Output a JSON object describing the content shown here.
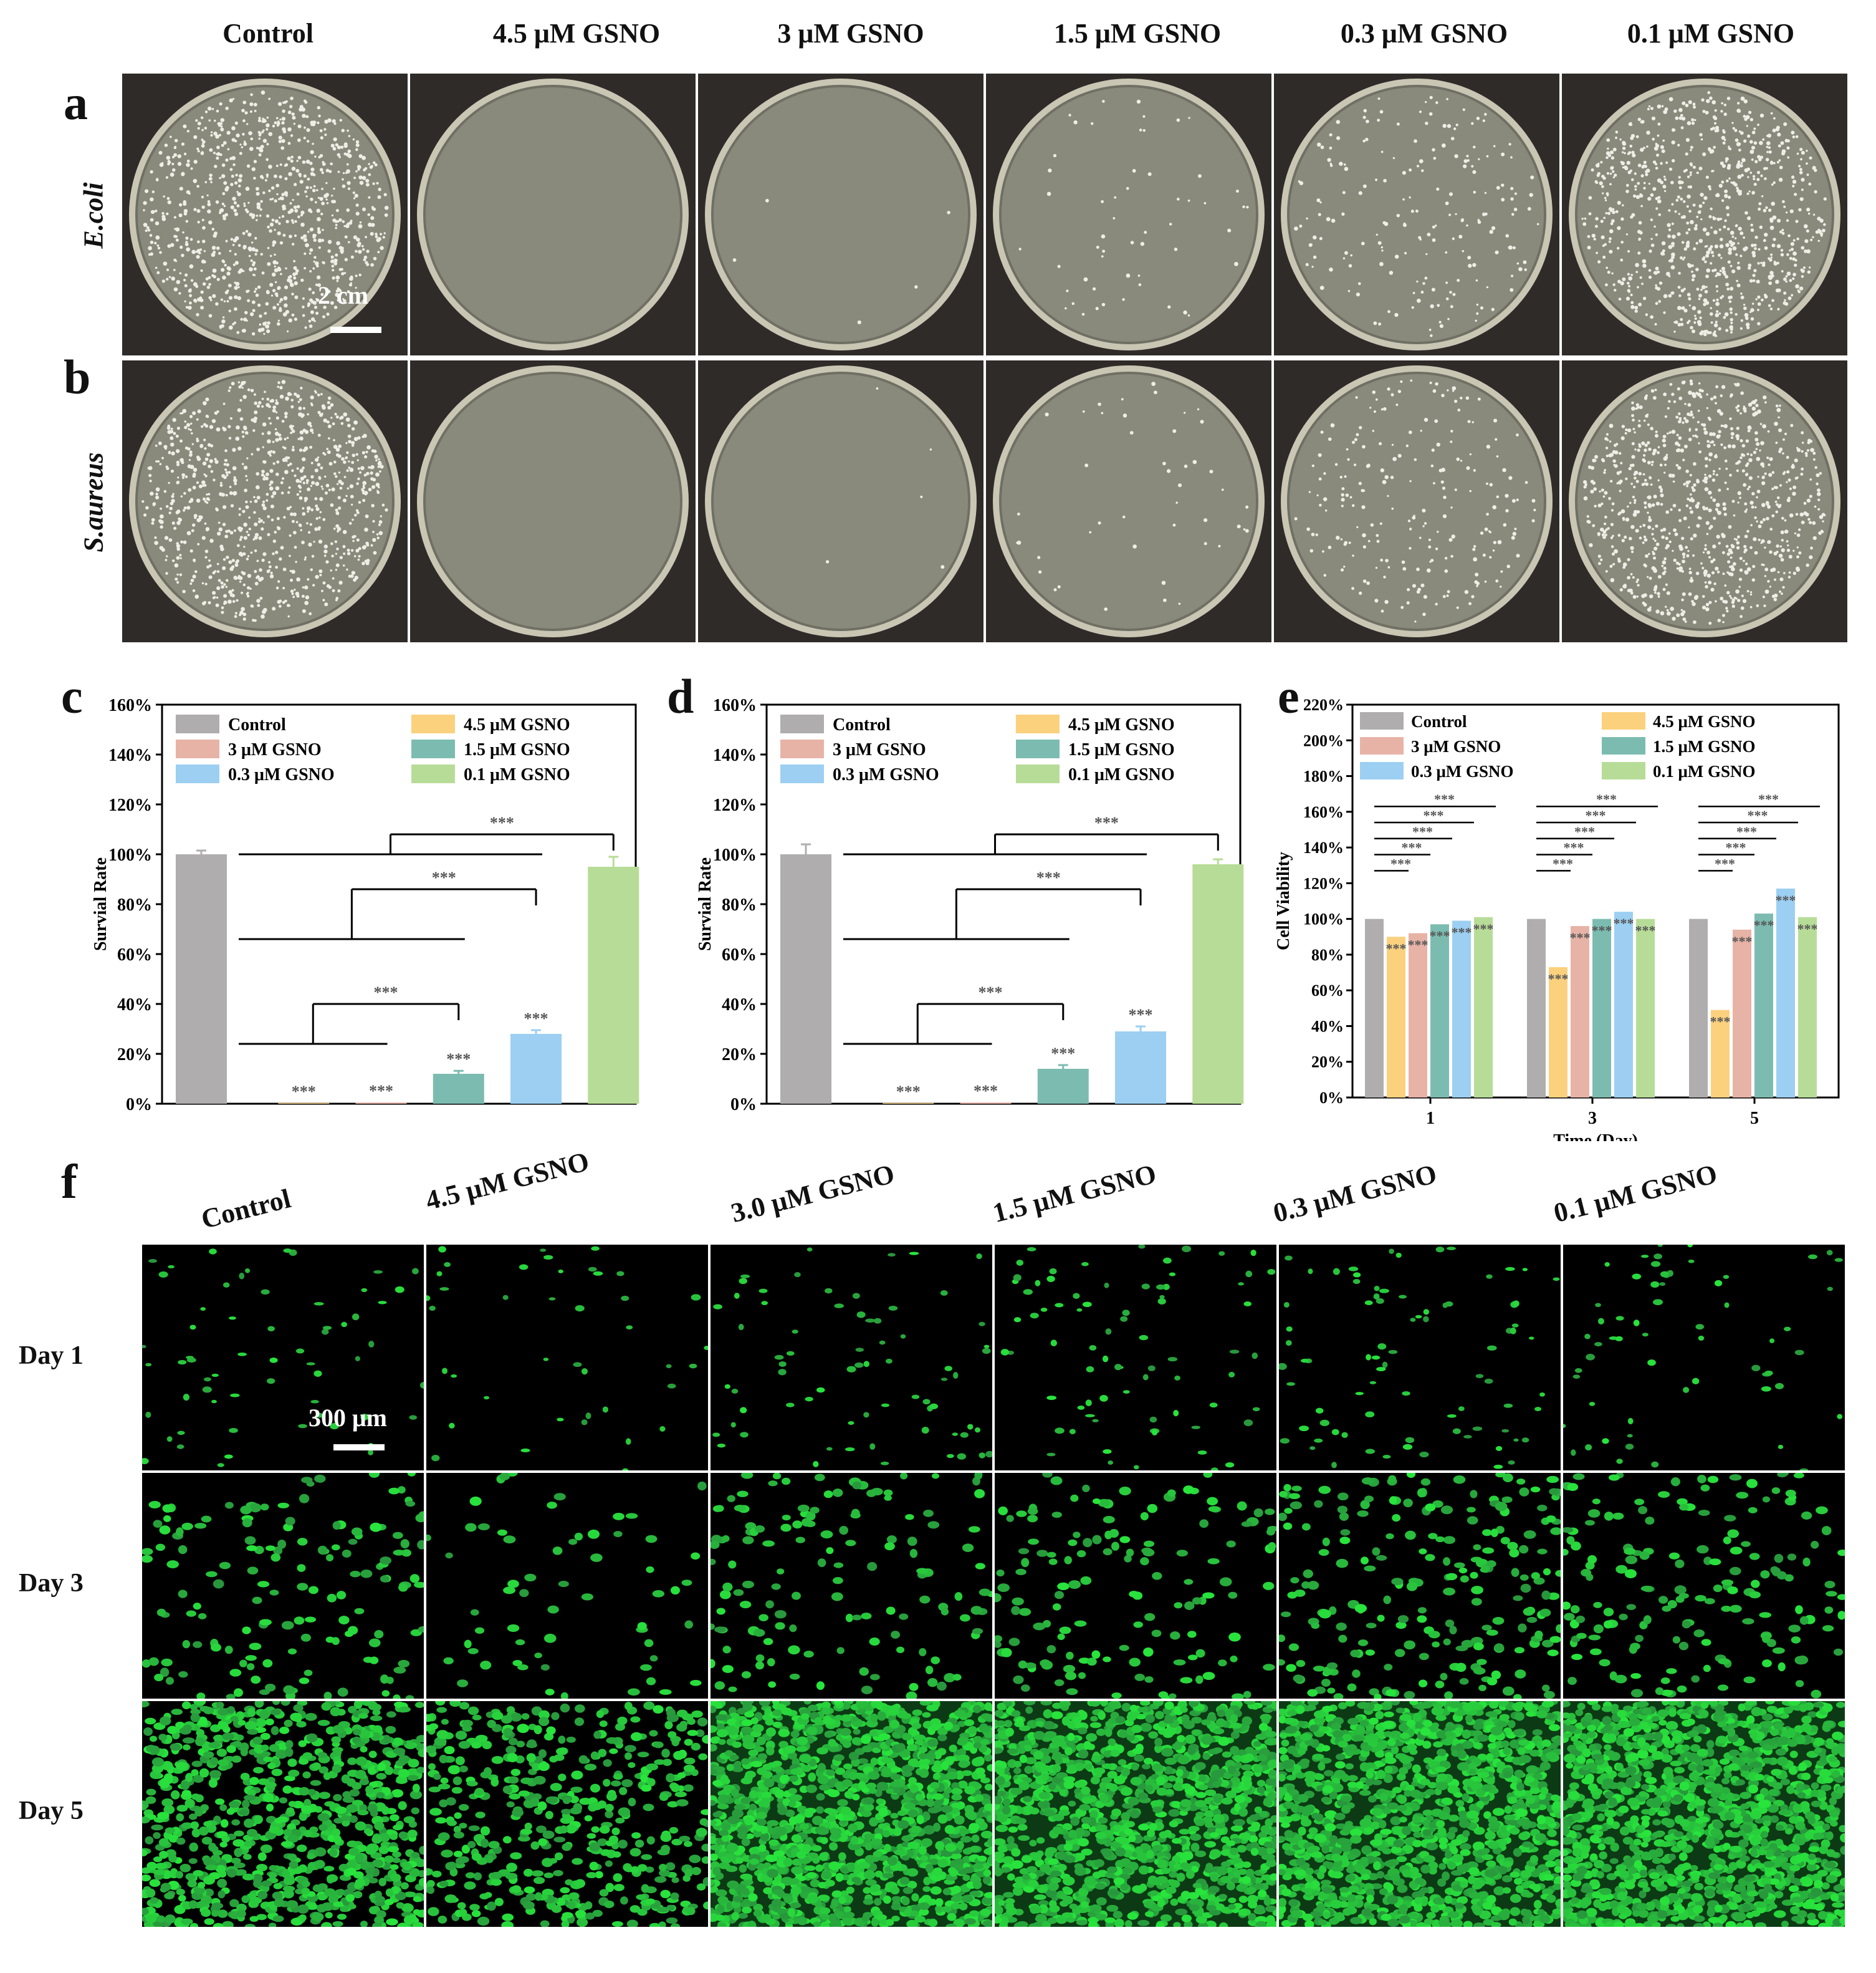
{
  "figure": {
    "panel_letters": {
      "a": "a",
      "b": "b",
      "c": "c",
      "d": "d",
      "e": "e",
      "f": "f"
    },
    "plate_columns": [
      "Control",
      "4.5 μM GSNO",
      "3 μM GSNO",
      "1.5 μM GSNO",
      "0.3 μM GSNO",
      "0.1 μM GSNO"
    ],
    "plate_rows": [
      "E.coli",
      "S.aureus"
    ],
    "plate_scale_bar": "2 cm",
    "plate_colony_density": {
      "E.coli": [
        1.0,
        0.0,
        0.005,
        0.06,
        0.22,
        0.95
      ],
      "S.aureus": [
        1.0,
        0.0,
        0.005,
        0.05,
        0.25,
        0.95
      ]
    },
    "fluor_columns": [
      "Control",
      "4.5 μM GSNO",
      "3.0 μM GSNO",
      "1.5 μM GSNO",
      "0.3 μM GSNO",
      "0.1 μM GSNO"
    ],
    "fluor_rows": [
      "Day 1",
      "Day 3",
      "Day 5"
    ],
    "fluor_scale_bar": "300 μm"
  },
  "chart_data": [
    {
      "panel": "c",
      "type": "bar",
      "ylabel": "Survial Rate",
      "ylim": [
        0,
        160
      ],
      "yticks": [
        "0%",
        "20%",
        "40%",
        "60%",
        "80%",
        "100%",
        "120%",
        "140%",
        "160%"
      ],
      "categories": [
        "Control",
        "4.5 μM GSNO",
        "3 μM GSNO",
        "1.5 μM GSNO",
        "0.3 μM GSNO",
        "0.1 μM GSNO"
      ],
      "values": [
        100,
        0.3,
        0.5,
        12,
        28,
        95
      ],
      "errors": [
        1.5,
        0,
        0,
        1.2,
        1.5,
        4
      ],
      "colors": [
        "#b0adaf",
        "#fbd17e",
        "#e7b3a6",
        "#7cbcb0",
        "#9ccff2",
        "#b7dc97"
      ],
      "bar_labels": [
        "",
        "***",
        "***",
        "***",
        "***",
        ""
      ],
      "legend": [
        "Control",
        "4.5 μM GSNO",
        "3 μM GSNO",
        "1.5 μM GSNO",
        "0.3 μM GSNO",
        "0.1 μM GSNO"
      ],
      "brackets": [
        "***",
        "***",
        "***"
      ]
    },
    {
      "panel": "d",
      "type": "bar",
      "ylabel": "Survial Rate",
      "ylim": [
        0,
        160
      ],
      "yticks": [
        "0%",
        "20%",
        "40%",
        "60%",
        "80%",
        "100%",
        "120%",
        "140%",
        "160%"
      ],
      "categories": [
        "Control",
        "4.5 μM GSNO",
        "3 μM GSNO",
        "1.5 μM GSNO",
        "0.3 μM GSNO",
        "0.1 μM GSNO"
      ],
      "values": [
        100,
        0.3,
        0.5,
        14,
        29,
        96
      ],
      "errors": [
        4,
        0,
        0,
        1.5,
        2,
        2
      ],
      "colors": [
        "#b0adaf",
        "#fbd17e",
        "#e7b3a6",
        "#7cbcb0",
        "#9ccff2",
        "#b7dc97"
      ],
      "bar_labels": [
        "",
        "***",
        "***",
        "***",
        "***",
        ""
      ],
      "legend": [
        "Control",
        "4.5 μM GSNO",
        "3 μM GSNO",
        "1.5 μM GSNO",
        "0.3 μM GSNO",
        "0.1 μM GSNO"
      ],
      "brackets": [
        "***",
        "***",
        "***"
      ]
    },
    {
      "panel": "e",
      "type": "bar",
      "xlabel": "Time (Day)",
      "ylabel": "Cell Viability",
      "ylim": [
        0,
        220
      ],
      "yticks": [
        "0%",
        "20%",
        "40%",
        "60%",
        "80%",
        "100%",
        "120%",
        "140%",
        "160%",
        "180%",
        "200%",
        "220%"
      ],
      "categories": [
        "1",
        "3",
        "5"
      ],
      "series": [
        {
          "name": "Control",
          "values": [
            100,
            100,
            100
          ],
          "color": "#b0adaf"
        },
        {
          "name": "4.5 μM GSNO",
          "values": [
            90,
            73,
            49
          ],
          "color": "#fbd17e"
        },
        {
          "name": "3 μM GSNO",
          "values": [
            92,
            96,
            94
          ],
          "color": "#e7b3a6"
        },
        {
          "name": "1.5 μM GSNO",
          "values": [
            97,
            100,
            103
          ],
          "color": "#7cbcb0"
        },
        {
          "name": "0.3 μM GSNO",
          "values": [
            99,
            104,
            117
          ],
          "color": "#9ccff2"
        },
        {
          "name": "0.1 μM GSNO",
          "values": [
            101,
            100,
            101
          ],
          "color": "#b7dc97"
        }
      ],
      "sig_marker": "***"
    }
  ]
}
